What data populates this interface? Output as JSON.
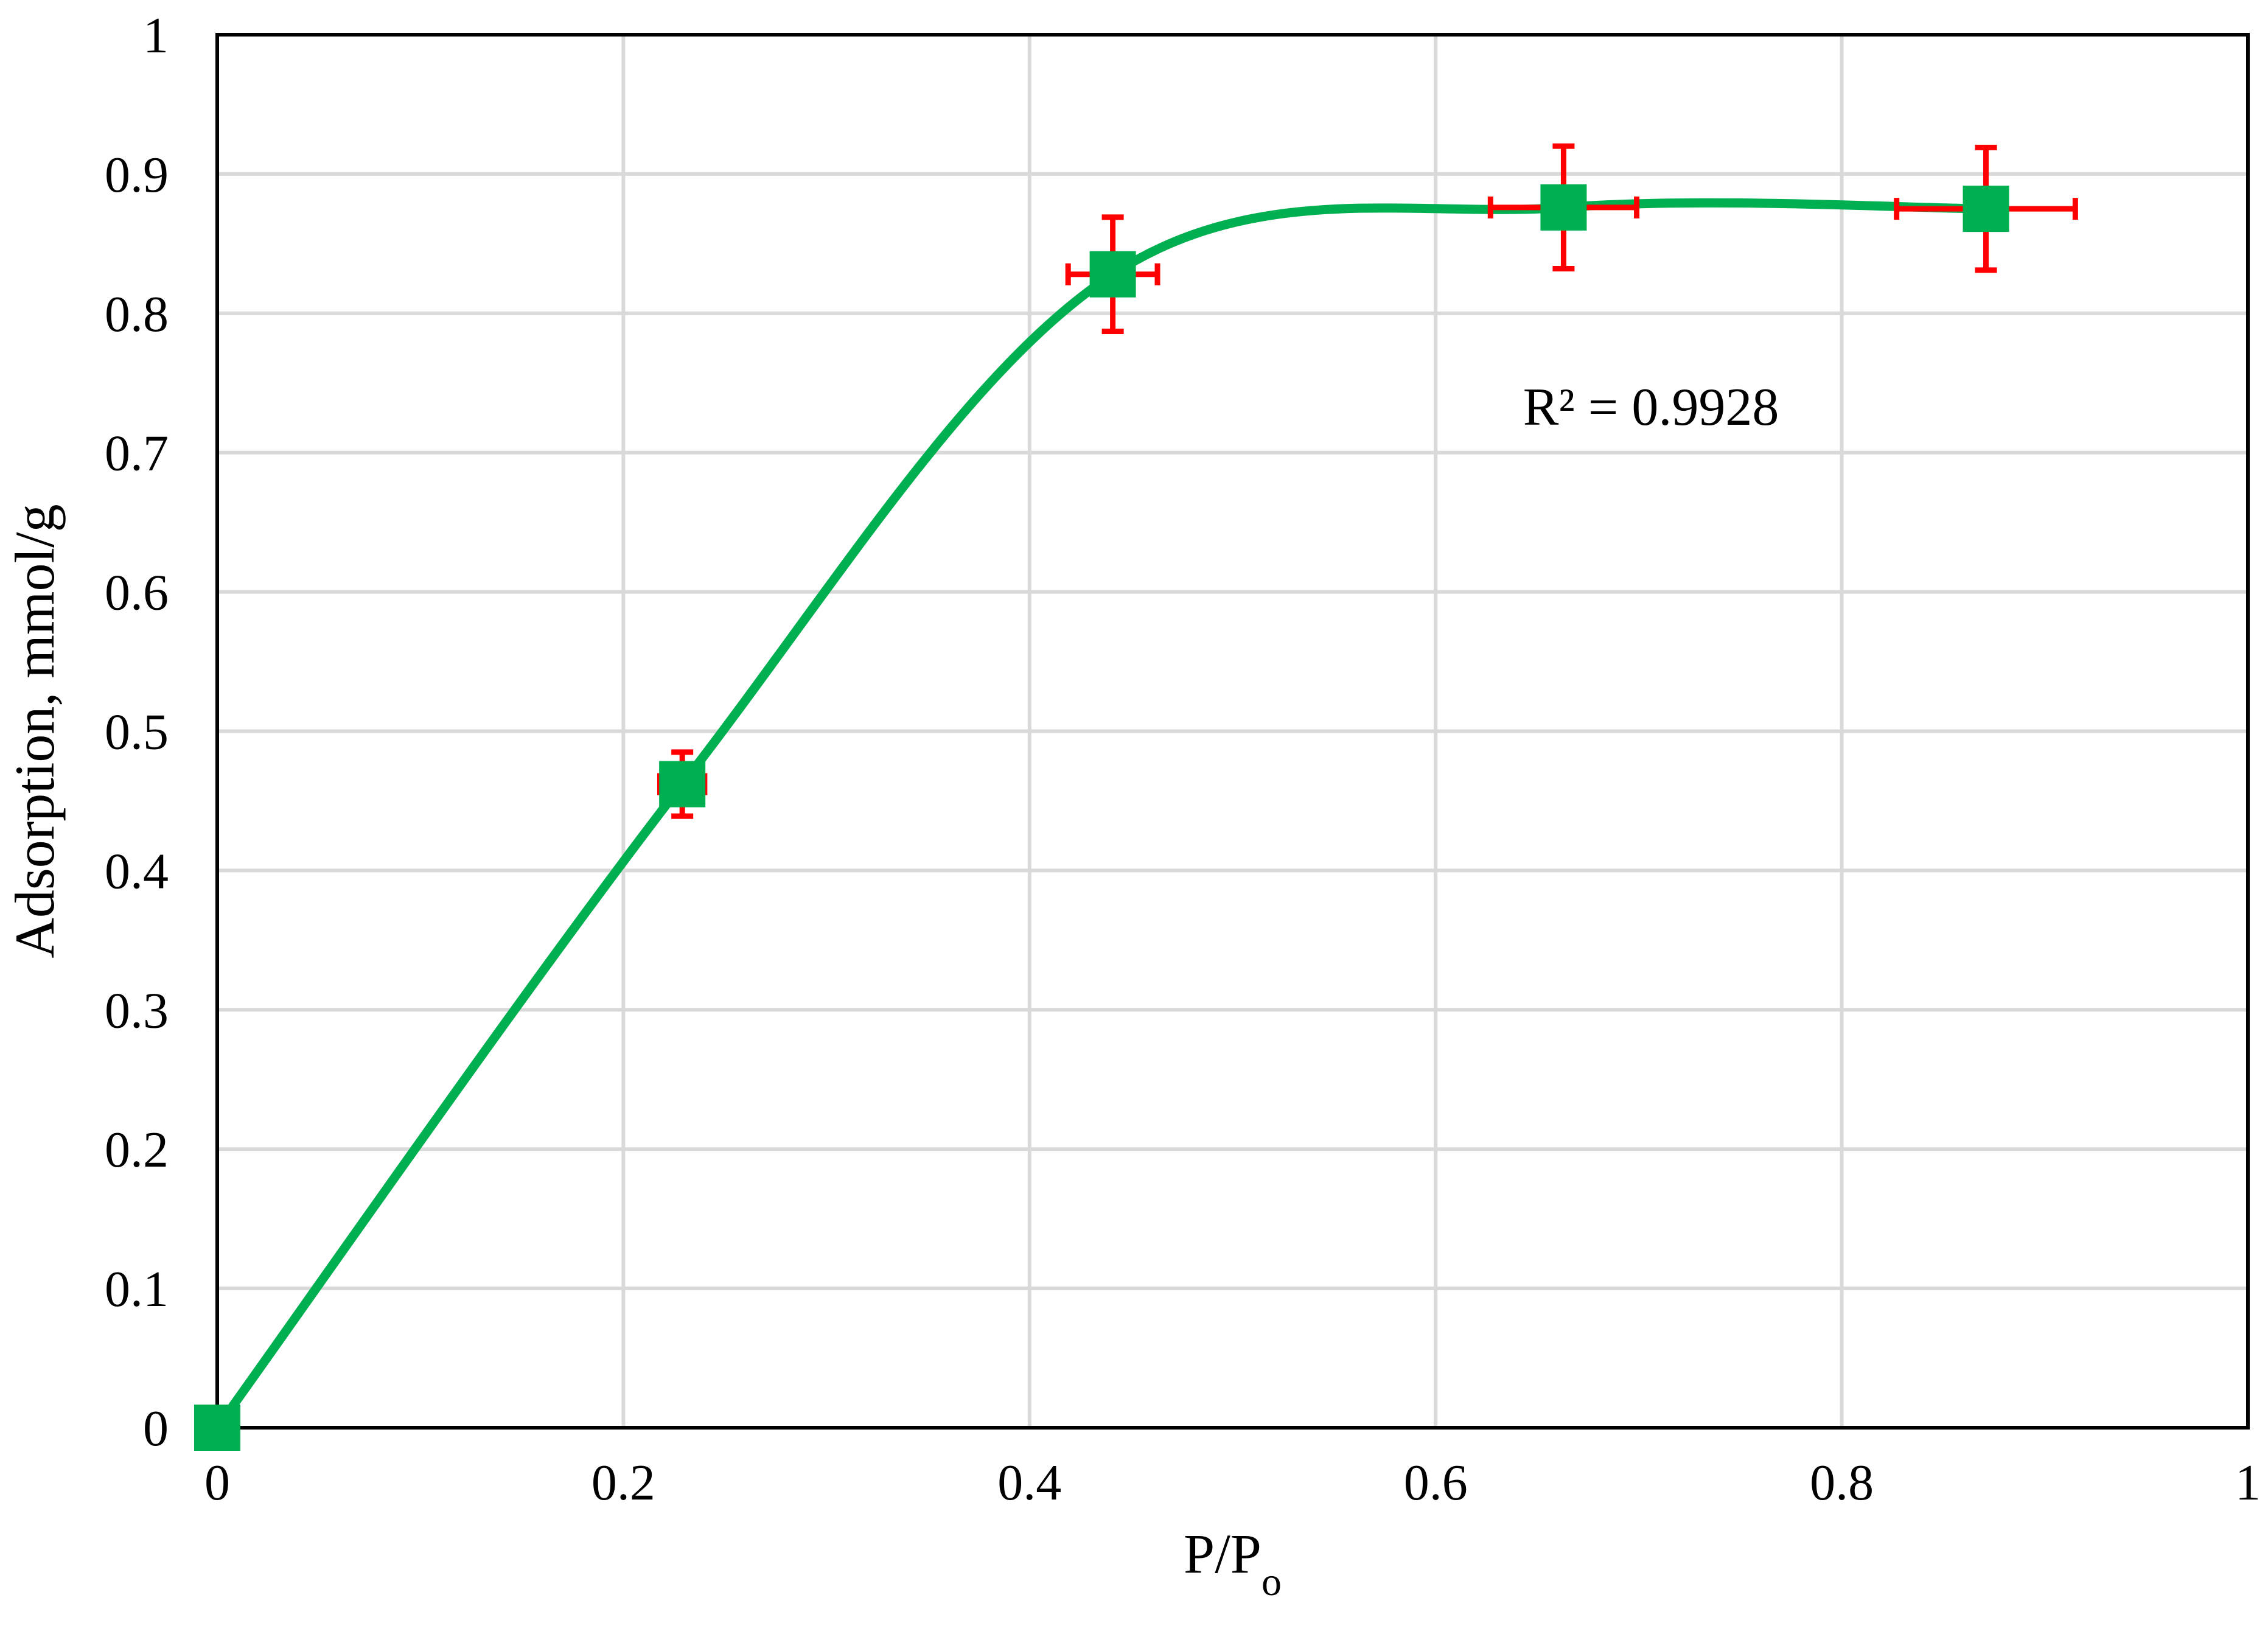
{
  "chart_data": {
    "type": "scatter",
    "xlabel": "P/P",
    "xlabel_subscript": "o",
    "ylabel": "Adsorption, mmol/g",
    "xlim": [
      0,
      1
    ],
    "ylim": [
      0,
      1
    ],
    "x_ticks": [
      "0",
      "0.2",
      "0.4",
      "0.6",
      "0.8",
      "1"
    ],
    "y_ticks": [
      "0",
      "0.1",
      "0.2",
      "0.3",
      "0.4",
      "0.5",
      "0.6",
      "0.7",
      "0.8",
      "0.9",
      "1"
    ],
    "grid": true,
    "annotation": "R² = 0.9928",
    "series": [
      {
        "x": [
          0,
          0.229,
          0.441,
          0.663,
          0.871
        ],
        "y": [
          0,
          0.462,
          0.828,
          0.876,
          0.875
        ],
        "x_err": [
          0,
          0.011,
          0.022,
          0.036,
          0.044
        ],
        "y_err": [
          0,
          0.023,
          0.041,
          0.044,
          0.044
        ],
        "marker": "square",
        "color": "#00b050",
        "error_color": "#ff0000",
        "trendline": "smooth"
      }
    ]
  }
}
